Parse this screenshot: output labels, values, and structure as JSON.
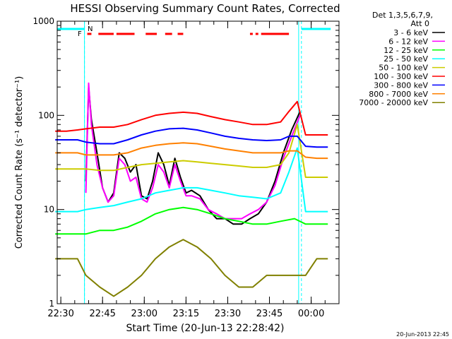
{
  "chart_data": {
    "type": "line",
    "title": "HESSI Observing Summary Count Rates, Corrected",
    "xlabel": "Start Time (20-Jun-13 22:28:42)",
    "ylabel": "Corrected Count Rate (s⁻¹ detector⁻¹)",
    "y_scale": "log",
    "ylim": [
      1,
      1000
    ],
    "xlim": [
      "22:28:42",
      "00:10"
    ],
    "y_ticks": [
      "1",
      "10",
      "100",
      "1000"
    ],
    "x_ticks": [
      "22:30",
      "22:45",
      "23:00",
      "23:15",
      "23:30",
      "23:45",
      "00:00"
    ],
    "grid": false,
    "legend_position": "right",
    "legend_header": [
      "Det 1,3,5,6,7,9,",
      "Att 0"
    ],
    "footer_date": "20-Jun-2013 22:45",
    "flags": {
      "F_label": "F",
      "N_label": "N",
      "flare_color": "#ff0000",
      "night_color": "#00ffff",
      "flare_intervals": [
        [
          "22:39:30",
          "22:41:00"
        ],
        [
          "22:43:30",
          "22:49:00"
        ],
        [
          "22:50:00",
          "22:56:30"
        ],
        [
          "23:00:30",
          "23:04:30"
        ],
        [
          "23:07:30",
          "23:10:00"
        ],
        [
          "23:12:00",
          "23:14:00"
        ],
        [
          "23:38:00",
          "23:39:00"
        ],
        [
          "23:40:00",
          "23:41:00"
        ],
        [
          "23:42:00",
          "23:52:00"
        ]
      ],
      "night_intervals": [
        [
          "22:28:42",
          "22:38:30"
        ],
        [
          "23:56:30",
          "00:07:00"
        ]
      ]
    },
    "night_boundaries": [
      "22:38:30",
      "23:56:30"
    ],
    "series": [
      {
        "name": "3 - 6 keV",
        "color": "#000000",
        "x": [
          "22:39",
          "22:40",
          "22:41",
          "22:43",
          "22:45",
          "22:47",
          "22:49",
          "22:51",
          "22:53",
          "22:55",
          "22:57",
          "22:59",
          "23:01",
          "23:03",
          "23:05",
          "23:07",
          "23:09",
          "23:11",
          "23:13",
          "23:15",
          "23:17",
          "23:20",
          "23:23",
          "23:26",
          "23:29",
          "23:32",
          "23:35",
          "23:38",
          "23:41",
          "23:44",
          "23:47",
          "23:50",
          "23:53",
          "23:56"
        ],
        "values": [
          20,
          200,
          90,
          40,
          17,
          12,
          15,
          40,
          35,
          25,
          30,
          14,
          13,
          20,
          40,
          30,
          18,
          35,
          22,
          15,
          16,
          14,
          10,
          8,
          8,
          7,
          7,
          8,
          9,
          12,
          20,
          40,
          70,
          110
        ]
      },
      {
        "name": "6 - 12 keV",
        "color": "#ff00ff",
        "x": [
          "22:39",
          "22:40",
          "22:41",
          "22:43",
          "22:45",
          "22:47",
          "22:49",
          "22:51",
          "22:53",
          "22:55",
          "22:57",
          "22:59",
          "23:01",
          "23:03",
          "23:05",
          "23:07",
          "23:09",
          "23:11",
          "23:13",
          "23:15",
          "23:17",
          "23:20",
          "23:23",
          "23:26",
          "23:29",
          "23:32",
          "23:35",
          "23:38",
          "23:41",
          "23:44",
          "23:47",
          "23:50",
          "23:53",
          "23:56"
        ],
        "values": [
          15,
          220,
          80,
          30,
          17,
          12,
          14,
          35,
          30,
          20,
          22,
          13,
          12,
          17,
          30,
          25,
          17,
          30,
          20,
          14,
          14,
          13,
          10,
          9,
          8,
          8,
          8,
          9,
          10,
          12,
          18,
          35,
          60,
          100
        ]
      },
      {
        "name": "12 - 25 keV",
        "color": "#00ff00",
        "x": [
          "22:28",
          "22:32",
          "22:36",
          "22:39",
          "22:44",
          "22:49",
          "22:54",
          "22:59",
          "23:04",
          "23:09",
          "23:14",
          "23:19",
          "23:24",
          "23:29",
          "23:34",
          "23:39",
          "23:44",
          "23:49",
          "23:54",
          "23:58",
          "00:02",
          "00:06"
        ],
        "values": [
          5.5,
          5.5,
          5.5,
          5.5,
          6,
          6,
          6.5,
          7.5,
          9,
          10,
          10.5,
          10,
          9,
          8,
          7.5,
          7,
          7,
          7.5,
          8,
          7,
          7,
          7
        ]
      },
      {
        "name": "25 - 50 keV",
        "color": "#00ffff",
        "x": [
          "22:28",
          "22:32",
          "22:36",
          "22:39",
          "22:44",
          "22:49",
          "22:54",
          "22:59",
          "23:04",
          "23:09",
          "23:14",
          "23:19",
          "23:24",
          "23:29",
          "23:34",
          "23:39",
          "23:44",
          "23:49",
          "23:52",
          "23:55",
          "23:58",
          "00:02",
          "00:06"
        ],
        "values": [
          9.5,
          9.5,
          9.5,
          10,
          10.5,
          11,
          12,
          13,
          15,
          16,
          17,
          17,
          16,
          15,
          14,
          13.5,
          13,
          15,
          25,
          45,
          9.5,
          9.5,
          9.5
        ]
      },
      {
        "name": "50 - 100 keV",
        "color": "#cccc00",
        "x": [
          "22:28",
          "22:32",
          "22:36",
          "22:39",
          "22:44",
          "22:49",
          "22:54",
          "22:59",
          "23:04",
          "23:09",
          "23:14",
          "23:19",
          "23:24",
          "23:29",
          "23:34",
          "23:39",
          "23:44",
          "23:49",
          "23:52",
          "23:55",
          "23:58",
          "00:02",
          "00:06"
        ],
        "values": [
          27,
          27,
          27,
          27,
          26,
          26,
          28,
          30,
          31,
          32,
          33,
          32,
          31,
          30,
          29,
          28,
          28,
          30,
          40,
          80,
          22,
          22,
          22
        ]
      },
      {
        "name": "100 - 300 keV",
        "color": "#ff0000",
        "x": [
          "22:28",
          "22:32",
          "22:36",
          "22:39",
          "22:44",
          "22:49",
          "22:54",
          "22:59",
          "23:04",
          "23:09",
          "23:14",
          "23:19",
          "23:24",
          "23:29",
          "23:34",
          "23:39",
          "23:44",
          "23:49",
          "23:52",
          "23:55",
          "23:58",
          "00:02",
          "00:06"
        ],
        "values": [
          68,
          68,
          70,
          72,
          75,
          75,
          80,
          90,
          100,
          105,
          108,
          105,
          97,
          90,
          85,
          80,
          80,
          85,
          110,
          140,
          62,
          62,
          62
        ]
      },
      {
        "name": "300 - 800 keV",
        "color": "#0000ff",
        "x": [
          "22:28",
          "22:32",
          "22:36",
          "22:39",
          "22:44",
          "22:49",
          "22:54",
          "22:59",
          "23:04",
          "23:09",
          "23:14",
          "23:19",
          "23:24",
          "23:29",
          "23:34",
          "23:39",
          "23:44",
          "23:49",
          "23:52",
          "23:55",
          "23:58",
          "00:02",
          "00:06"
        ],
        "values": [
          55,
          55,
          55,
          52,
          50,
          50,
          55,
          62,
          68,
          72,
          73,
          70,
          65,
          60,
          57,
          55,
          54,
          55,
          60,
          60,
          47,
          46,
          46
        ]
      },
      {
        "name": "800 - 7000 keV",
        "color": "#ff8000",
        "x": [
          "22:28",
          "22:32",
          "22:36",
          "22:39",
          "22:44",
          "22:49",
          "22:54",
          "22:59",
          "23:04",
          "23:09",
          "23:14",
          "23:19",
          "23:24",
          "23:29",
          "23:34",
          "23:39",
          "23:44",
          "23:49",
          "23:52",
          "23:55",
          "23:58",
          "00:02",
          "00:06"
        ],
        "values": [
          40,
          40,
          40,
          38,
          38,
          38,
          40,
          45,
          48,
          50,
          51,
          50,
          47,
          44,
          42,
          40,
          40,
          40,
          42,
          42,
          36,
          35,
          35
        ]
      },
      {
        "name": "7000 - 20000 keV",
        "color": "#808000",
        "x": [
          "22:28",
          "22:32",
          "22:36",
          "22:39",
          "22:44",
          "22:49",
          "22:54",
          "22:59",
          "23:04",
          "23:09",
          "23:14",
          "23:19",
          "23:24",
          "23:29",
          "23:34",
          "23:39",
          "23:44",
          "23:49",
          "23:54",
          "23:58",
          "00:02",
          "00:06"
        ],
        "values": [
          3,
          3,
          3,
          2,
          1.5,
          1.2,
          1.5,
          2,
          3,
          4,
          4.8,
          4,
          3,
          2,
          1.5,
          1.5,
          2,
          2,
          2,
          2,
          3,
          3
        ]
      }
    ]
  }
}
